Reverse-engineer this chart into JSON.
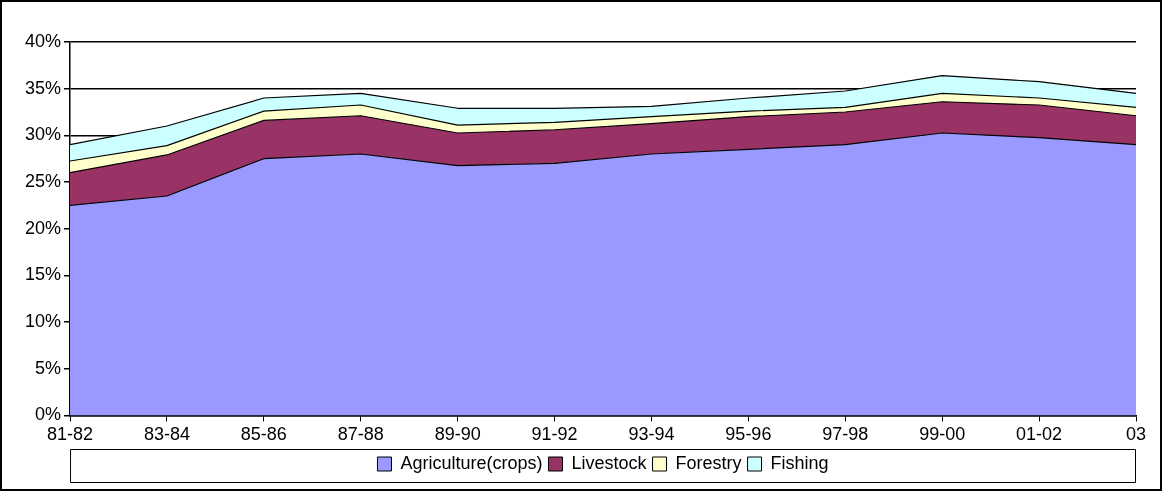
{
  "chart_data": {
    "type": "area",
    "stacked": true,
    "categories": [
      "81-82",
      "83-84",
      "85-86",
      "87-88",
      "89-90",
      "91-92",
      "93-94",
      "95-96",
      "97-98",
      "99-00",
      "01-02",
      "03"
    ],
    "series": [
      {
        "name": "Agriculture(crops)",
        "color": "#9999ff",
        "values": [
          22.5,
          23.5,
          27.5,
          28,
          26.75,
          27,
          28,
          28.5,
          29,
          30.25,
          29.75,
          29
        ]
      },
      {
        "name": "Livestock",
        "color": "#993366",
        "values": [
          3.5,
          4.4,
          4.1,
          4.1,
          3.5,
          3.6,
          3.25,
          3.5,
          3.5,
          3.35,
          3.5,
          3.1
        ]
      },
      {
        "name": "Forestry",
        "color": "#ffffcc",
        "values": [
          1.25,
          1.0,
          1.0,
          1.15,
          0.85,
          0.8,
          0.75,
          0.6,
          0.5,
          0.9,
          0.75,
          0.9
        ]
      },
      {
        "name": "Fishing",
        "color": "#ccffff",
        "values": [
          1.75,
          2.1,
          1.4,
          1.25,
          1.8,
          1.5,
          1.1,
          1.4,
          1.75,
          1.9,
          1.75,
          1.5
        ]
      }
    ],
    "ylim": [
      0,
      40
    ],
    "yticks": [
      {
        "value": 0,
        "label": "0%"
      },
      {
        "value": 5,
        "label": "5%"
      },
      {
        "value": 10,
        "label": "10%"
      },
      {
        "value": 15,
        "label": "15%"
      },
      {
        "value": 20,
        "label": "20%"
      },
      {
        "value": 25,
        "label": "25%"
      },
      {
        "value": 30,
        "label": "30%"
      },
      {
        "value": 35,
        "label": "35%"
      },
      {
        "value": 40,
        "label": "40%"
      }
    ],
    "grid": "y",
    "legend": "bottom"
  }
}
